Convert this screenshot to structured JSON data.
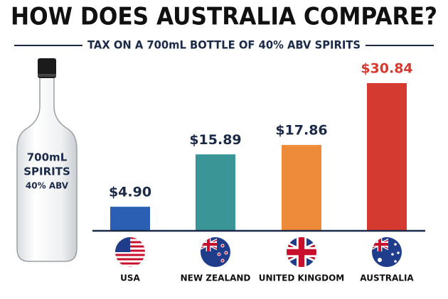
{
  "chart_data": {
    "type": "bar",
    "title": "HOW DOES AUSTRALIA COMPARE?",
    "subtitle": "TAX ON A 700mL BOTTLE OF 40% ABV SPIRITS",
    "categories": [
      "USA",
      "NEW ZEALAND",
      "UNITED KINGDOM",
      "AUSTRALIA"
    ],
    "values": [
      4.9,
      15.89,
      17.86,
      30.84
    ],
    "value_labels": [
      "$4.90",
      "$15.89",
      "$17.86",
      "$30.84"
    ],
    "colors": [
      "#2b5fb4",
      "#3a9696",
      "#ee8b3a",
      "#d53a30"
    ],
    "value_label_colors": [
      "#1c2a4a",
      "#1c2a4a",
      "#1c2a4a",
      "#d53a30"
    ]
  },
  "bottle_label": [
    "700mL",
    "SPIRITS",
    "40% ABV"
  ]
}
